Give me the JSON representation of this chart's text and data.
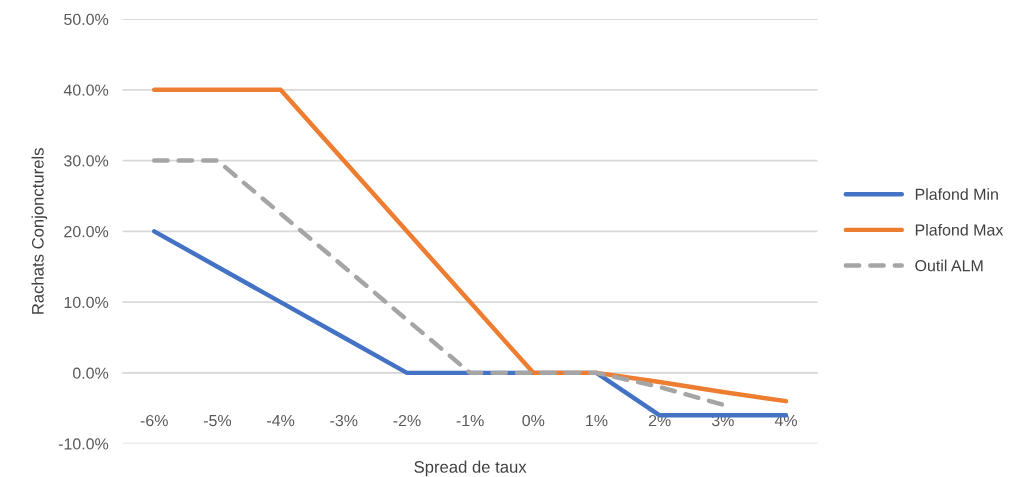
{
  "chart_data": {
    "type": "line",
    "xlabel": "Spread de taux",
    "ylabel": "Rachats Conjoncturels",
    "categories": [
      "-6%",
      "-5%",
      "-4%",
      "-3%",
      "-2%",
      "-1%",
      "0%",
      "1%",
      "2%",
      "3%",
      "4%"
    ],
    "series": [
      {
        "name": "Plafond Min",
        "color": "#4472c4",
        "values": [
          20,
          15,
          10,
          5,
          0,
          0,
          0,
          0,
          -6,
          -6,
          -6
        ]
      },
      {
        "name": "Plafond Max",
        "color": "#ed7d31",
        "values": [
          40,
          40,
          40,
          30,
          20,
          10,
          0,
          0,
          -1.3,
          -2.7,
          -4
        ]
      },
      {
        "name": "Outil ALM",
        "color": "#a5a5a5",
        "line_style": "dashed",
        "values": [
          30,
          30,
          22.5,
          15,
          7.5,
          0,
          0,
          0,
          -2,
          -4.5,
          null
        ]
      }
    ],
    "ylim": [
      -10,
      50
    ],
    "yticks": [
      {
        "value": -10,
        "label": "-10.0%"
      },
      {
        "value": 0,
        "label": "0.0%"
      },
      {
        "value": 10,
        "label": "10.0%"
      },
      {
        "value": 20,
        "label": "20.0%"
      },
      {
        "value": 30,
        "label": "30.0%"
      },
      {
        "value": 40,
        "label": "40.0%"
      },
      {
        "value": 50,
        "label": "50.0%"
      }
    ],
    "grid": "y",
    "legend": "right",
    "marker": "none",
    "line_style": "solid"
  }
}
